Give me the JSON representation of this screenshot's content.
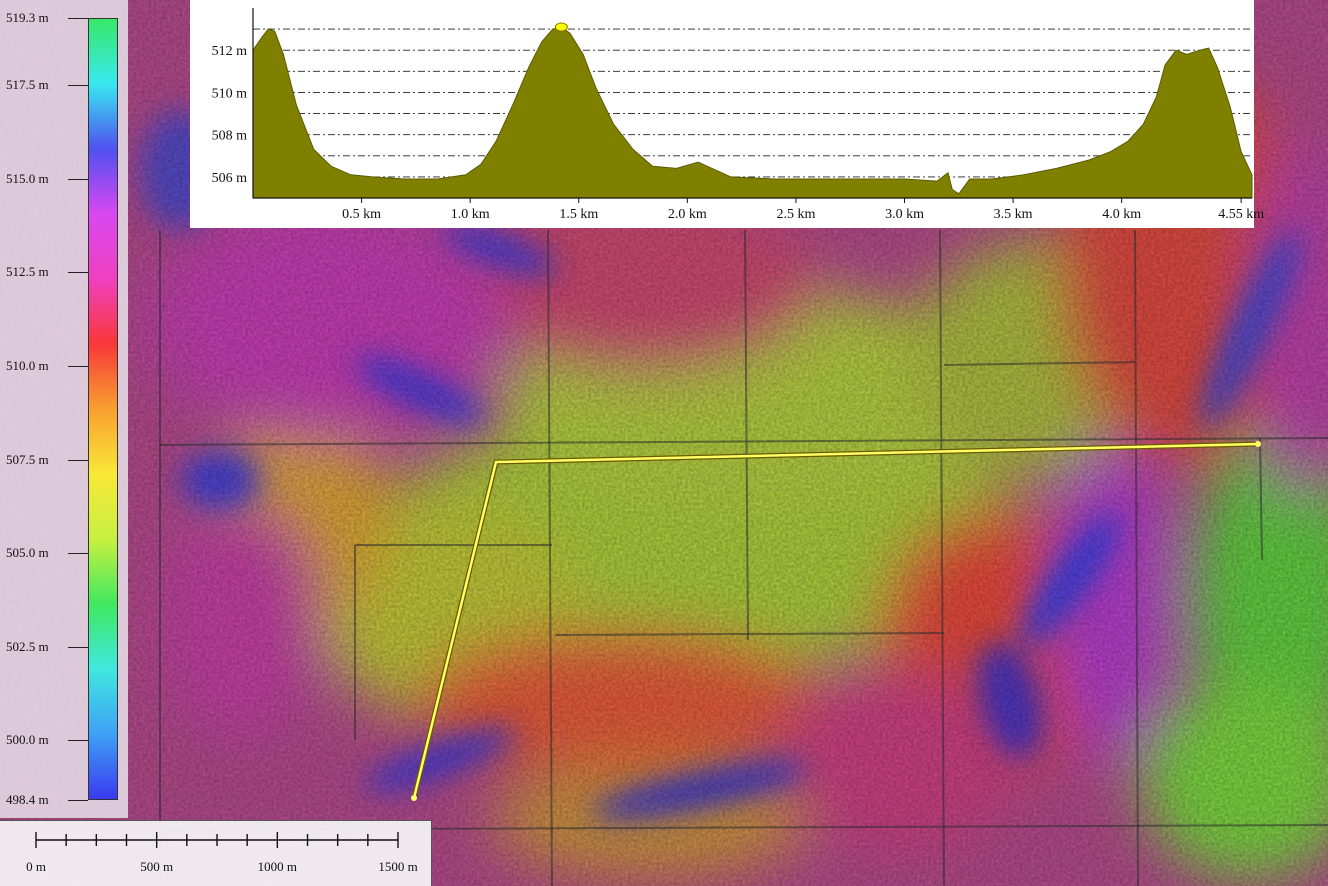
{
  "legend": {
    "labels": [
      "519.3 m",
      "517.5 m",
      "515.0 m",
      "512.5 m",
      "510.0 m",
      "507.5 m",
      "505.0 m",
      "502.5 m",
      "500.0 m",
      "498.4 m"
    ],
    "values": [
      519.3,
      517.5,
      515.0,
      512.5,
      510.0,
      507.5,
      505.0,
      502.5,
      500.0,
      498.4
    ],
    "min": 498.4,
    "max": 519.3,
    "ramp_colors": [
      "#3a3af0",
      "#3fa0f5",
      "#3fe8e0",
      "#40e860",
      "#c8f040",
      "#f8e838",
      "#f8a030",
      "#f83838",
      "#f040c0",
      "#d848f0",
      "#5050f0",
      "#38e8f0",
      "#38e868"
    ]
  },
  "chart_data": {
    "type": "area",
    "title": "",
    "xlabel": "",
    "ylabel": "",
    "x_unit": "km",
    "y_unit": "m",
    "xlim": [
      0,
      4.6
    ],
    "ylim": [
      505.0,
      514.0
    ],
    "x_ticks": [
      0.5,
      1.0,
      1.5,
      2.0,
      2.5,
      3.0,
      3.5,
      4.0,
      4.55
    ],
    "x_tick_labels": [
      "0.5 km",
      "1.0 km",
      "1.5 km",
      "2.0 km",
      "2.5 km",
      "3.0 km",
      "3.5 km",
      "4.0 km",
      "4.55 km"
    ],
    "y_ticks": [
      506,
      508,
      510,
      512
    ],
    "y_tick_labels": [
      "506 m",
      "508 m",
      "510 m",
      "512 m"
    ],
    "grid": true,
    "fill_color": "#808000",
    "marker": {
      "x": 1.42,
      "y": 513.1,
      "color": "#ffff00"
    },
    "series": [
      {
        "x": [
          0.0,
          0.04,
          0.07,
          0.1,
          0.14,
          0.2,
          0.28,
          0.36,
          0.45,
          0.55,
          0.7,
          0.85,
          0.98,
          1.05,
          1.12,
          1.2,
          1.27,
          1.33,
          1.38,
          1.42,
          1.46,
          1.52,
          1.58,
          1.66,
          1.75,
          1.84,
          1.95,
          2.05,
          2.2,
          2.4,
          2.6,
          2.8,
          3.0,
          3.15,
          3.2,
          3.22,
          3.25,
          3.3,
          3.4,
          3.55,
          3.7,
          3.85,
          3.95,
          4.03,
          4.1,
          4.16,
          4.2,
          4.25,
          4.3,
          4.36,
          4.4,
          4.44,
          4.5,
          4.55,
          4.6
        ],
        "y": [
          512.0,
          512.6,
          513.0,
          512.9,
          511.8,
          509.4,
          507.3,
          506.5,
          506.1,
          506.0,
          505.9,
          505.9,
          506.1,
          506.6,
          507.7,
          509.5,
          511.2,
          512.4,
          513.0,
          513.1,
          512.8,
          511.8,
          510.2,
          508.5,
          507.3,
          506.5,
          506.4,
          506.7,
          506.0,
          505.9,
          505.9,
          505.9,
          505.9,
          505.8,
          506.2,
          505.4,
          505.2,
          505.9,
          505.9,
          506.1,
          506.4,
          506.8,
          507.2,
          507.7,
          508.5,
          509.8,
          511.3,
          512.0,
          511.8,
          512.0,
          512.1,
          511.2,
          509.3,
          507.2,
          506.1
        ]
      }
    ]
  },
  "scale_bar": {
    "labels": [
      "0 m",
      "500 m",
      "1000 m",
      "1500 m"
    ],
    "values_m": [
      0,
      500,
      1000,
      1500
    ],
    "minor_divisions": 12
  },
  "colors": {
    "profile_line": "#ffff66",
    "profile_line_outline": "#6b5a00"
  }
}
